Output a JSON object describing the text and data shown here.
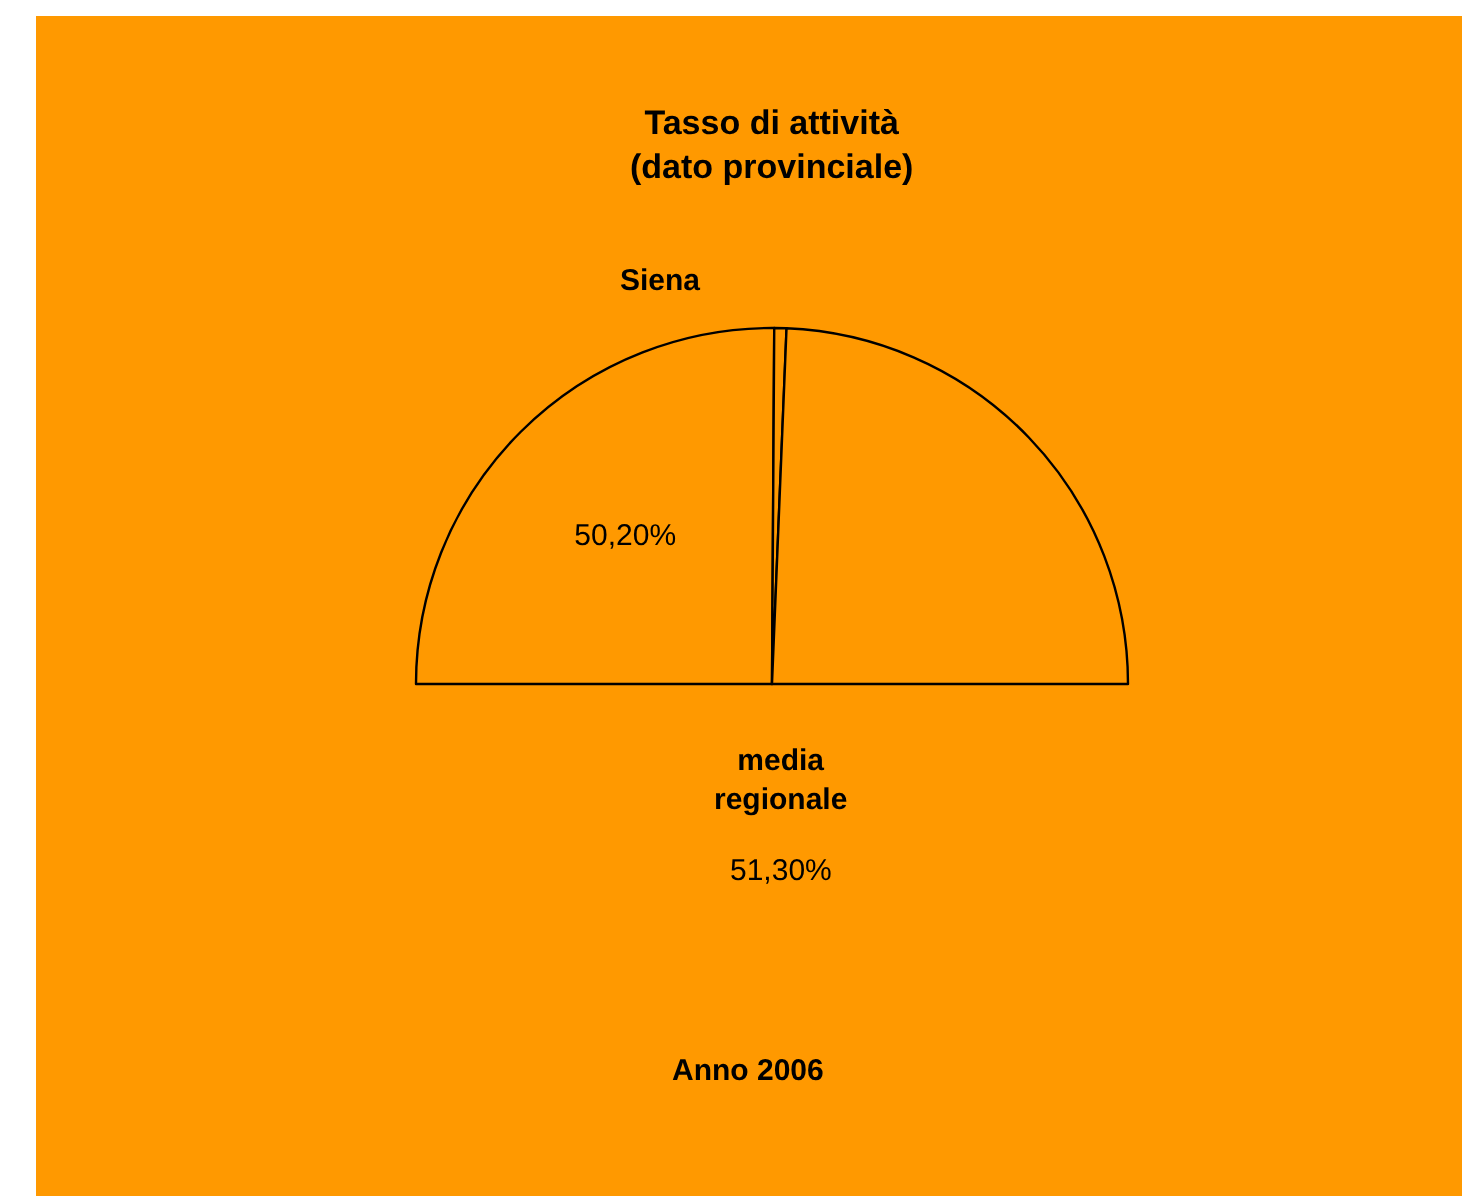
{
  "chart_data": {
    "type": "pie",
    "title": "Tasso di attività\n(dato provinciale)",
    "categories": [
      "Siena",
      null,
      null
    ],
    "values": [
      50.2,
      1.1,
      48.7
    ],
    "colors": [
      "#ff9900",
      "#ff9900",
      "#ff9900"
    ],
    "value_labels": [
      "50,20%",
      null,
      null
    ],
    "annotations": [
      "media regionale",
      "51,30%",
      "Anno 2006"
    ],
    "legend": false
  }
}
